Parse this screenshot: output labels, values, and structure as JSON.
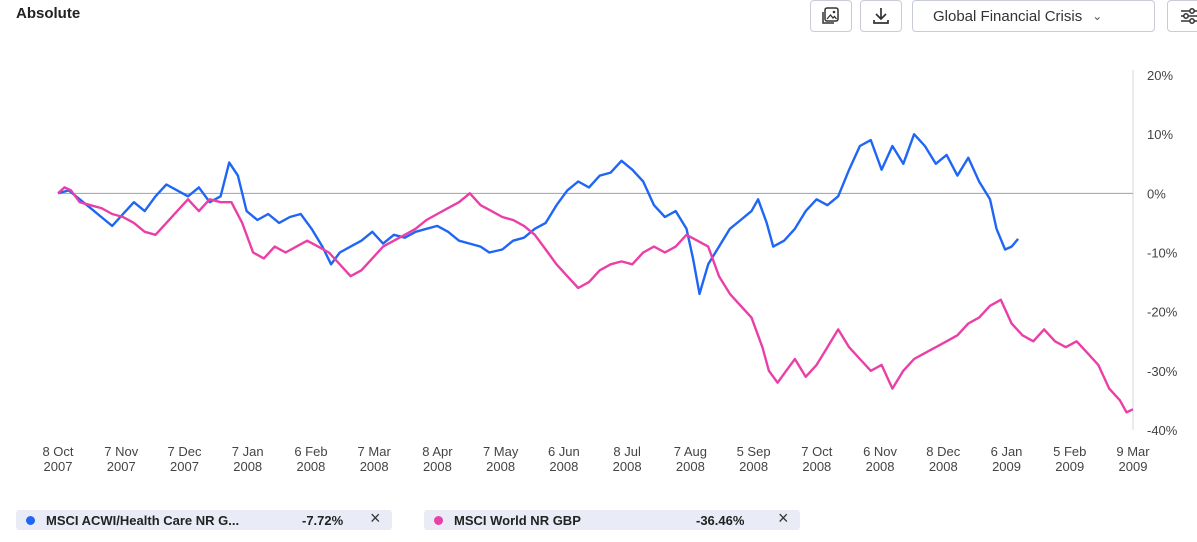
{
  "header": {
    "title": "Absolute"
  },
  "toolbar": {
    "image_export_icon": "image-export-icon",
    "download_icon": "download-icon",
    "scenario_selected": "Global Financial Crisis",
    "settings_icon": "sliders-icon"
  },
  "legend": [
    {
      "name": "MSCI ACWI/Health Care NR G...",
      "value": "-7.72%",
      "color": "#1f66f5"
    },
    {
      "name": "MSCI World NR GBP",
      "value": "-36.46%",
      "color": "#ea3fa6"
    }
  ],
  "chart_data": {
    "type": "line",
    "title": "",
    "xlabel": "",
    "ylabel": "",
    "ylim": [
      -40,
      20
    ],
    "y_ticks": [
      "20%",
      "10%",
      "0%",
      "-10%",
      "-20%",
      "-30%",
      "-40%"
    ],
    "x_ticks": [
      [
        "8 Oct",
        "2007"
      ],
      [
        "7 Nov",
        "2007"
      ],
      [
        "7 Dec",
        "2007"
      ],
      [
        "7 Jan",
        "2008"
      ],
      [
        "6 Feb",
        "2008"
      ],
      [
        "7 Mar",
        "2008"
      ],
      [
        "8 Apr",
        "2008"
      ],
      [
        "7 May",
        "2008"
      ],
      [
        "6 Jun",
        "2008"
      ],
      [
        "8 Jul",
        "2008"
      ],
      [
        "7 Aug",
        "2008"
      ],
      [
        "5 Sep",
        "2008"
      ],
      [
        "7 Oct",
        "2008"
      ],
      [
        "6 Nov",
        "2008"
      ],
      [
        "8 Dec",
        "2008"
      ],
      [
        "6 Jan",
        "2009"
      ],
      [
        "5 Feb",
        "2009"
      ],
      [
        "9 Mar",
        "2009"
      ]
    ],
    "zero_line": true,
    "series": [
      {
        "name": "MSCI ACWI/Health Care NR G...",
        "color": "#1f66f5",
        "points": [
          [
            0,
            0
          ],
          [
            0.5,
            0.5
          ],
          [
            1,
            -1
          ],
          [
            1.5,
            -2.5
          ],
          [
            2,
            -4
          ],
          [
            2.5,
            -5.5
          ],
          [
            3,
            -3.5
          ],
          [
            3.5,
            -1.5
          ],
          [
            4,
            -3
          ],
          [
            4.5,
            -0.5
          ],
          [
            5,
            1.5
          ],
          [
            5.5,
            0.5
          ],
          [
            6,
            -0.5
          ],
          [
            6.5,
            1
          ],
          [
            7,
            -1.5
          ],
          [
            7.5,
            -0.5
          ],
          [
            7.9,
            5.2
          ],
          [
            8.3,
            3
          ],
          [
            8.7,
            -3
          ],
          [
            9.2,
            -4.5
          ],
          [
            9.7,
            -3.5
          ],
          [
            10.2,
            -5
          ],
          [
            10.7,
            -4
          ],
          [
            11.2,
            -3.5
          ],
          [
            11.7,
            -6
          ],
          [
            12.2,
            -9
          ],
          [
            12.6,
            -12
          ],
          [
            13,
            -10
          ],
          [
            13.5,
            -9
          ],
          [
            14,
            -8
          ],
          [
            14.5,
            -6.5
          ],
          [
            15,
            -8.5
          ],
          [
            15.5,
            -7
          ],
          [
            16,
            -7.5
          ],
          [
            16.5,
            -6.5
          ],
          [
            17,
            -6
          ],
          [
            17.5,
            -5.5
          ],
          [
            18,
            -6.5
          ],
          [
            18.5,
            -8
          ],
          [
            19,
            -8.5
          ],
          [
            19.5,
            -9
          ],
          [
            19.9,
            -10
          ],
          [
            20.5,
            -9.5
          ],
          [
            21,
            -8
          ],
          [
            21.5,
            -7.5
          ],
          [
            22,
            -6
          ],
          [
            22.5,
            -5
          ],
          [
            23,
            -2
          ],
          [
            23.5,
            0.5
          ],
          [
            24,
            2
          ],
          [
            24.5,
            1
          ],
          [
            25,
            3
          ],
          [
            25.5,
            3.5
          ],
          [
            26,
            5.5
          ],
          [
            26.5,
            4
          ],
          [
            27,
            2
          ],
          [
            27.5,
            -2
          ],
          [
            28,
            -4
          ],
          [
            28.5,
            -3
          ],
          [
            29,
            -6
          ],
          [
            29.3,
            -11
          ],
          [
            29.6,
            -17
          ],
          [
            30,
            -12
          ],
          [
            30.5,
            -9
          ],
          [
            31,
            -6
          ],
          [
            31.5,
            -4.5
          ],
          [
            32,
            -3
          ],
          [
            32.3,
            -1
          ],
          [
            32.7,
            -5
          ],
          [
            33,
            -9
          ],
          [
            33.5,
            -8
          ],
          [
            34,
            -6
          ],
          [
            34.5,
            -3
          ],
          [
            35,
            -1
          ],
          [
            35.5,
            -2
          ],
          [
            36,
            -0.5
          ],
          [
            36.5,
            4
          ],
          [
            37,
            8
          ],
          [
            37.5,
            9
          ],
          [
            38,
            4
          ],
          [
            38.5,
            8
          ],
          [
            39,
            5
          ],
          [
            39.5,
            10
          ],
          [
            40,
            8
          ],
          [
            40.5,
            5
          ],
          [
            41,
            6.5
          ],
          [
            41.5,
            3
          ],
          [
            42,
            6
          ],
          [
            42.5,
            2
          ],
          [
            43,
            -1
          ],
          [
            43.3,
            -6
          ],
          [
            43.7,
            -9.5
          ],
          [
            44,
            -9
          ],
          [
            44.3,
            -7.7
          ]
        ]
      },
      {
        "name": "MSCI World NR GBP",
        "color": "#ea3fa6",
        "points": [
          [
            0,
            0
          ],
          [
            0.3,
            1
          ],
          [
            0.6,
            0.5
          ],
          [
            1,
            -1.5
          ],
          [
            1.5,
            -2
          ],
          [
            2,
            -2.5
          ],
          [
            2.5,
            -3.5
          ],
          [
            3,
            -4
          ],
          [
            3.5,
            -5
          ],
          [
            4,
            -6.5
          ],
          [
            4.5,
            -7
          ],
          [
            5,
            -5
          ],
          [
            5.5,
            -3
          ],
          [
            6,
            -1
          ],
          [
            6.5,
            -3
          ],
          [
            7,
            -1
          ],
          [
            7.5,
            -1.5
          ],
          [
            8,
            -1.5
          ],
          [
            8.5,
            -5
          ],
          [
            9,
            -10
          ],
          [
            9.5,
            -11
          ],
          [
            10,
            -9
          ],
          [
            10.5,
            -10
          ],
          [
            11,
            -9
          ],
          [
            11.5,
            -8
          ],
          [
            12,
            -9
          ],
          [
            12.5,
            -10
          ],
          [
            13,
            -12
          ],
          [
            13.5,
            -14
          ],
          [
            14,
            -13
          ],
          [
            14.5,
            -11
          ],
          [
            15,
            -9
          ],
          [
            15.5,
            -8
          ],
          [
            16,
            -7
          ],
          [
            16.5,
            -6
          ],
          [
            17,
            -4.5
          ],
          [
            17.5,
            -3.5
          ],
          [
            18,
            -2.5
          ],
          [
            18.5,
            -1.5
          ],
          [
            19,
            0
          ],
          [
            19.5,
            -2
          ],
          [
            20,
            -3
          ],
          [
            20.5,
            -4
          ],
          [
            21,
            -4.5
          ],
          [
            21.5,
            -5.5
          ],
          [
            22,
            -7
          ],
          [
            22.5,
            -9.5
          ],
          [
            23,
            -12
          ],
          [
            23.5,
            -14
          ],
          [
            24,
            -16
          ],
          [
            24.5,
            -15
          ],
          [
            25,
            -13
          ],
          [
            25.5,
            -12
          ],
          [
            26,
            -11.5
          ],
          [
            26.5,
            -12
          ],
          [
            27,
            -10
          ],
          [
            27.5,
            -9
          ],
          [
            28,
            -10
          ],
          [
            28.5,
            -9
          ],
          [
            29,
            -7
          ],
          [
            29.5,
            -8
          ],
          [
            30,
            -9
          ],
          [
            30.5,
            -14
          ],
          [
            31,
            -17
          ],
          [
            31.5,
            -19
          ],
          [
            32,
            -21
          ],
          [
            32.5,
            -26
          ],
          [
            32.8,
            -30
          ],
          [
            33.2,
            -32
          ],
          [
            33.6,
            -30
          ],
          [
            34,
            -28
          ],
          [
            34.5,
            -31
          ],
          [
            35,
            -29
          ],
          [
            35.5,
            -26
          ],
          [
            36,
            -23
          ],
          [
            36.5,
            -26
          ],
          [
            37,
            -28
          ],
          [
            37.5,
            -30
          ],
          [
            38,
            -29
          ],
          [
            38.5,
            -33
          ],
          [
            39,
            -30
          ],
          [
            39.5,
            -28
          ],
          [
            40,
            -27
          ],
          [
            40.5,
            -26
          ],
          [
            41,
            -25
          ],
          [
            41.5,
            -24
          ],
          [
            42,
            -22
          ],
          [
            42.5,
            -21
          ],
          [
            43,
            -19
          ],
          [
            43.5,
            -18
          ],
          [
            44,
            -22
          ],
          [
            44.5,
            -24
          ],
          [
            45,
            -25
          ],
          [
            45.5,
            -23
          ],
          [
            46,
            -25
          ],
          [
            46.5,
            -26
          ],
          [
            47,
            -25
          ],
          [
            47.5,
            -27
          ],
          [
            48,
            -29
          ],
          [
            48.5,
            -33
          ],
          [
            49,
            -35
          ],
          [
            49.3,
            -37
          ],
          [
            49.6,
            -36.5
          ]
        ]
      }
    ]
  }
}
